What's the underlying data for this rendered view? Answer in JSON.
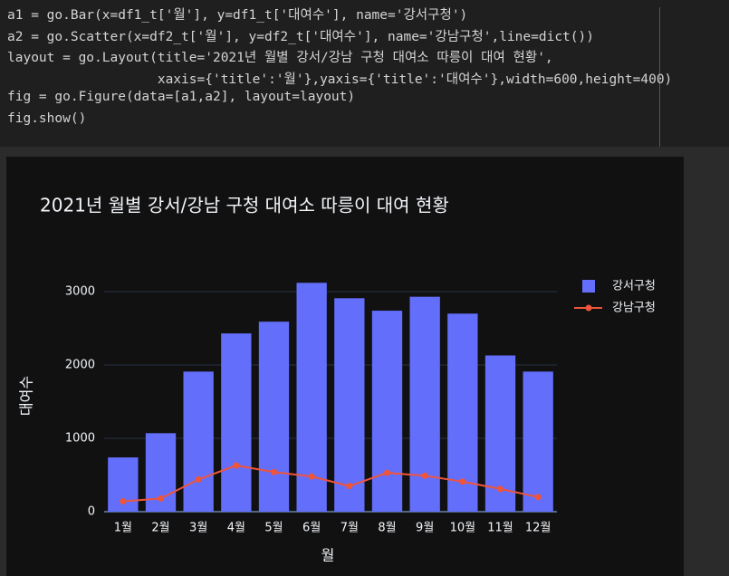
{
  "code": {
    "lines": [
      "a1 = go.Bar(x=df1_t['월'], y=df1_t['대여수'], name='강서구청')",
      "a2 = go.Scatter(x=df2_t['월'], y=df2_t['대여수'], name='강남구청',line=dict())",
      "layout = go.Layout(title='2021년 월별 강서/강남 구청 대여소 따릉이 대여 현황',",
      "                   xaxis={'title':'월'},yaxis={'title':'대여수'},width=600,height=400)",
      "fig = go.Figure(data=[a1,a2], layout=layout)",
      "fig.show()"
    ]
  },
  "chart_data": {
    "type": "bar",
    "title": "2021년 월별 강서/강남 구청 대여소 따릉이 대여 현황",
    "x_label": "월",
    "y_label": "대여수",
    "categories": [
      "1월",
      "2월",
      "3월",
      "4월",
      "5월",
      "6월",
      "7월",
      "8월",
      "9월",
      "10월",
      "11월",
      "12월"
    ],
    "series": [
      {
        "name": "강서구청",
        "type": "bar",
        "color": "#636efa",
        "values": [
          740,
          1070,
          1910,
          2430,
          2590,
          3120,
          2910,
          2740,
          2930,
          2700,
          2130,
          1910
        ]
      },
      {
        "name": "강남구청",
        "type": "line",
        "color": "#ef553b",
        "values": [
          140,
          180,
          440,
          630,
          540,
          480,
          350,
          530,
          490,
          410,
          310,
          200
        ]
      }
    ],
    "ylim": [
      0,
      3290
    ],
    "yticks": [
      0,
      1000,
      2000,
      3000
    ],
    "grid": true,
    "legend": "right"
  }
}
